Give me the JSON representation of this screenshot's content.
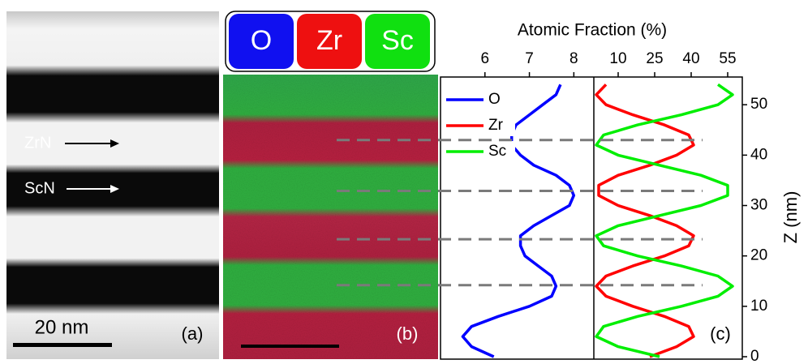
{
  "panel_a": {
    "labels": [
      "ZrN",
      "ScN"
    ],
    "scale_bar": "20 nm",
    "tag": "(a)"
  },
  "panel_b": {
    "legend": [
      {
        "name": "O",
        "color": "#1010f0"
      },
      {
        "name": "Zr",
        "color": "#ee1010"
      },
      {
        "name": "Sc",
        "color": "#10e010"
      }
    ],
    "tag": "(b)"
  },
  "chart_data": {
    "type": "line",
    "title": "Atomic Fraction (%)",
    "y_label": "Z (nm)",
    "tag": "(c)",
    "y": [
      0,
      2,
      4,
      6,
      8,
      10,
      12,
      14,
      16,
      18,
      20,
      22,
      24,
      26,
      28,
      30,
      32,
      34,
      36,
      38,
      40,
      42,
      44,
      46,
      48,
      50,
      52,
      54
    ],
    "series": [
      {
        "name": "O",
        "color": "#0000ff",
        "axis": "x",
        "values": [
          6.2,
          5.7,
          5.5,
          5.7,
          6.3,
          7.0,
          7.5,
          7.6,
          7.5,
          7.2,
          6.9,
          6.8,
          6.8,
          7.1,
          7.5,
          7.9,
          8.0,
          7.9,
          7.6,
          7.1,
          6.8,
          6.6,
          6.6,
          6.7,
          7.0,
          7.3,
          7.6,
          7.7
        ]
      },
      {
        "name": "Zr",
        "color": "#ff0000",
        "axis": "x2",
        "values": [
          23,
          34,
          41,
          39,
          29,
          16,
          5,
          1,
          5,
          16,
          29,
          39,
          41,
          34,
          23,
          10,
          2,
          2,
          10,
          23,
          34,
          41,
          39,
          29,
          16,
          5,
          1,
          5
        ]
      },
      {
        "name": "Sc",
        "color": "#00ee00",
        "axis": "x2",
        "values": [
          27,
          10,
          1,
          4,
          18,
          36,
          51,
          57,
          51,
          36,
          18,
          4,
          1,
          10,
          27,
          44,
          55,
          55,
          44,
          27,
          10,
          1,
          4,
          18,
          36,
          51,
          57,
          51
        ]
      }
    ],
    "xlim": [
      5,
      8.45
    ],
    "xticks": [
      6,
      7,
      8
    ],
    "x2lim": [
      0,
      61
    ],
    "x2ticks": [
      10,
      25,
      40,
      55
    ],
    "ylim": [
      0,
      55.5
    ],
    "yticks": [
      0,
      10,
      20,
      30,
      40,
      50
    ],
    "reference_lines": [
      14.2,
      23.3,
      32.9,
      43
    ],
    "legend": "upper left"
  }
}
